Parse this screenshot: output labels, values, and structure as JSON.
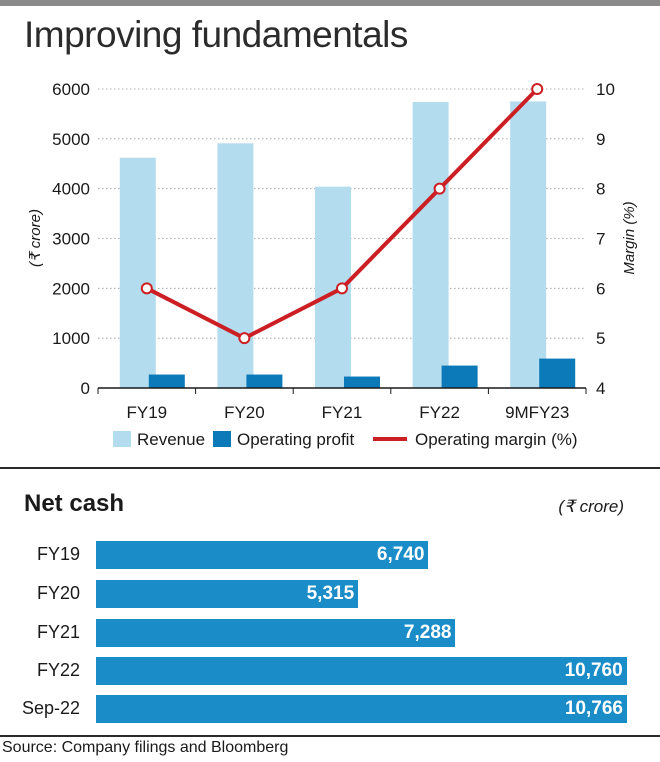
{
  "title": "Improving fundamentals",
  "colors": {
    "revenue": "#b3dcee",
    "operating_profit": "#0c79b8",
    "operating_margin": "#cc1f24",
    "net_cash": "#1a8cc8",
    "gridline": "#999999"
  },
  "legend": {
    "revenue": "Revenue",
    "operating_profit": "Operating profit",
    "operating_margin": "Operating margin (%)"
  },
  "source": "Source: Company filings and Bloomberg",
  "chart_data": [
    {
      "type": "bar",
      "categories": [
        "FY19",
        "FY20",
        "FY21",
        "FY22",
        "9MFY23"
      ],
      "series": [
        {
          "name": "Revenue",
          "type": "bar",
          "axis": "left",
          "values": [
            4620,
            4910,
            4040,
            5740,
            5750
          ]
        },
        {
          "name": "Operating profit",
          "type": "bar",
          "axis": "left",
          "values": [
            270,
            270,
            230,
            450,
            590
          ]
        },
        {
          "name": "Operating margin (%)",
          "type": "line",
          "axis": "right",
          "values": [
            6,
            5,
            6,
            8,
            10
          ]
        }
      ],
      "ylabel": "(₹ crore)",
      "y2label": "Margin (%)",
      "ylim": [
        0,
        6000
      ],
      "y2lim": [
        4,
        10
      ],
      "yticks": [
        0,
        1000,
        2000,
        3000,
        4000,
        5000,
        6000
      ],
      "y2ticks": [
        4,
        5,
        6,
        7,
        8,
        9,
        10
      ],
      "legend_position": "bottom"
    },
    {
      "type": "bar",
      "orientation": "horizontal",
      "title": "Net cash",
      "unit": "(₹ crore)",
      "categories": [
        "FY19",
        "FY20",
        "FY21",
        "FY22",
        "Sep-22"
      ],
      "values": [
        6740,
        5315,
        7288,
        10760,
        10766
      ],
      "value_labels": [
        "6,740",
        "5,315",
        "7,288",
        "10,760",
        "10,766"
      ]
    }
  ]
}
